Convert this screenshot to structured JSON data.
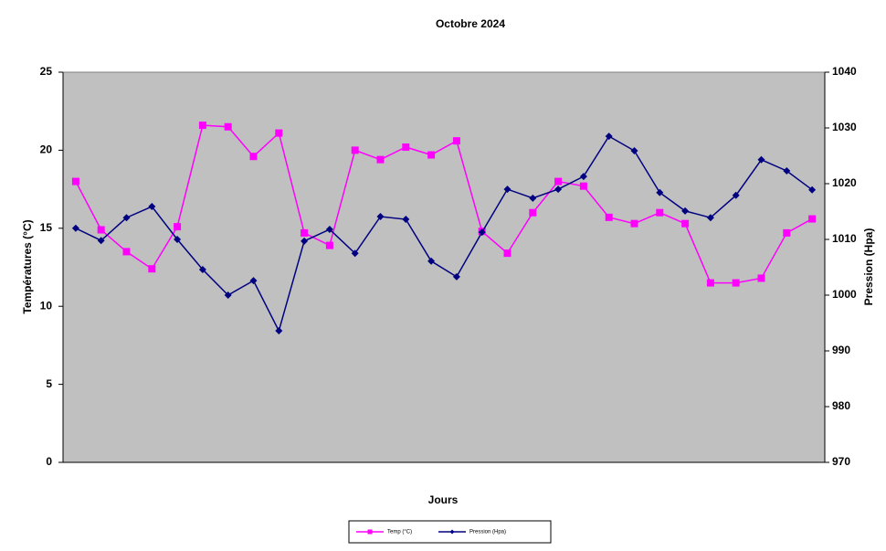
{
  "chart_data": {
    "type": "line",
    "title": "Octobre 2024",
    "x_label": "Jours",
    "y_label": "Températures (°C)",
    "y2_label": "Pression (Hpa)",
    "categories": [
      null,
      null,
      null,
      null,
      null,
      null,
      null,
      null,
      null,
      null,
      null,
      null,
      null,
      null,
      null,
      null,
      null,
      null,
      null,
      null,
      null,
      null,
      null,
      null,
      null,
      null,
      null,
      null,
      null,
      null
    ],
    "series": [
      {
        "name": "Temp (°C)",
        "color": "#ff00ff",
        "marker": "square",
        "values": [
          18.0,
          14.9,
          13.5,
          12.4,
          15.1,
          21.6,
          21.5,
          19.6,
          21.1,
          14.7,
          13.9,
          20.0,
          19.4,
          20.2,
          19.7,
          20.6,
          14.8,
          13.4,
          16.0,
          18.0,
          17.7,
          15.7,
          15.3,
          16.0,
          15.3,
          11.5,
          11.5,
          11.8,
          14.7,
          15.6
        ]
      },
      {
        "name": "Pression (Hpa)",
        "color": "#000080",
        "marker": "diamond",
        "axis": "y2",
        "values": [
          1012.0,
          1009.8,
          1013.9,
          1015.9,
          1010.0,
          1004.6,
          1000.0,
          1002.6,
          993.6,
          1009.7,
          1011.8,
          1007.5,
          1014.1,
          1013.6,
          1006.1,
          1003.3,
          1011.3,
          1019.0,
          1017.4,
          1019.0,
          1021.3,
          1028.5,
          1025.9,
          1018.4,
          1015.1,
          1013.9,
          1017.9,
          1024.3,
          1022.3,
          1018.9
        ]
      }
    ],
    "ylim": [
      0,
      25
    ],
    "yticks": [
      0,
      5,
      10,
      15,
      20,
      25
    ],
    "y2lim": [
      970,
      1040
    ],
    "y2ticks": [
      970,
      980,
      990,
      1000,
      1010,
      1020,
      1030,
      1040
    ],
    "plot_background": "#c0c0c0",
    "legend": "bottom"
  }
}
